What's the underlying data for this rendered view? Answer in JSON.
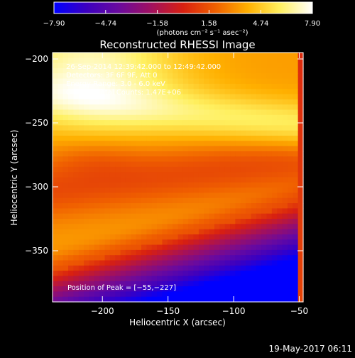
{
  "chart_data": {
    "type": "heatmap",
    "title": "Reconstructed RHESSI Image",
    "xlabel": "Heliocentric X (arcsec)",
    "ylabel": "Heliocentric Y (arcsec)",
    "xlim": [
      -238,
      -47
    ],
    "ylim": [
      -390,
      -195
    ],
    "x_ticks": [
      -200,
      -150,
      -100,
      -50
    ],
    "x_tick_labels": [
      "−200",
      "−150",
      "−100",
      "−50"
    ],
    "y_ticks": [
      -200,
      -250,
      -300,
      -350
    ],
    "y_tick_labels": [
      "−200",
      "−250",
      "−300",
      "−350"
    ],
    "annotations": [
      "26-Sep-2014 12:39:42.000 to 12:49:42.000",
      "Detectors: 3F 6F 9F, Att 0",
      "Energy Range: 3.0 - 6.0 keV",
      "Clean     Total Counts: 1.47E+06"
    ],
    "peak_label": "Position of Peak = [−55,−227]",
    "peak": [
      -55,
      -227
    ],
    "colorbar": {
      "min": -7.9,
      "max": 7.9,
      "tick_values": [
        -7.9,
        -4.74,
        -1.58,
        1.58,
        4.74,
        7.9
      ],
      "tick_labels": [
        "−7.90",
        "−4.74",
        "−1.58",
        "1.58",
        "4.74",
        "7.90"
      ],
      "unit_label": "(photons cm⁻² s⁻¹ asec⁻²)",
      "colors": [
        "#0000ff",
        "#3c00c0",
        "#6a0a9e",
        "#a01060",
        "#d82010",
        "#f06000",
        "#ffb000",
        "#fff060",
        "#ffffff"
      ]
    }
  },
  "footer": {
    "date": "19-May-2017 06:11"
  }
}
